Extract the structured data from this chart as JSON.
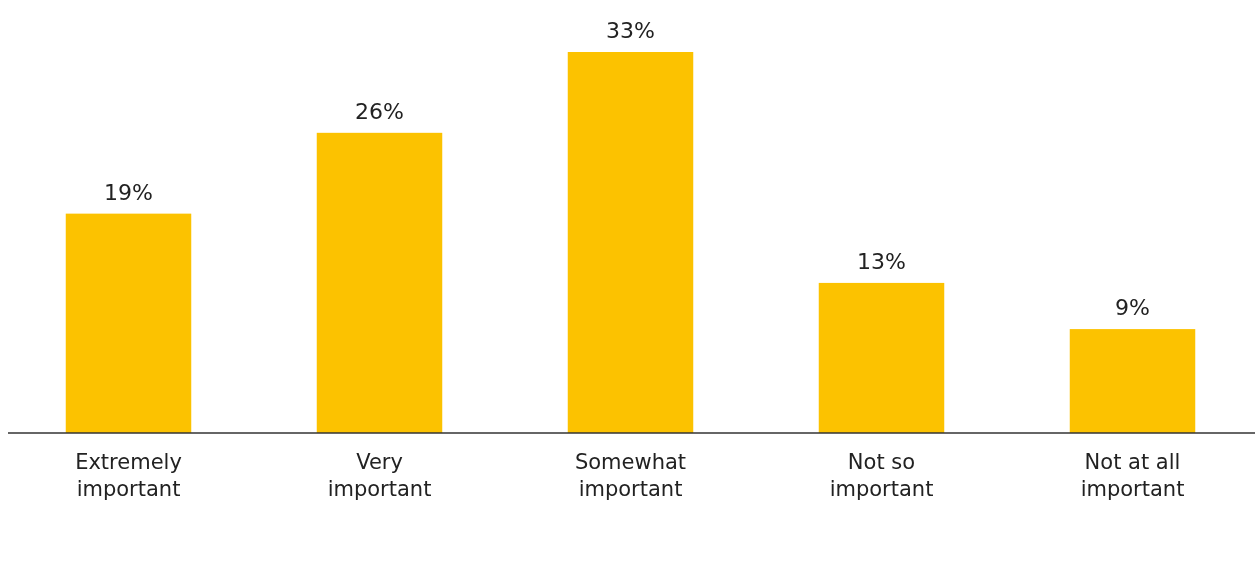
{
  "chart_data": {
    "type": "bar",
    "categories": [
      "Extremely important",
      "Very important",
      "Somewhat important",
      "Not so important",
      "Not at all important"
    ],
    "values": [
      19,
      26,
      33,
      13,
      9
    ],
    "color": "#fcc200",
    "value_labels": [
      "19%",
      "26%",
      "33%",
      "13%",
      "9%"
    ]
  }
}
